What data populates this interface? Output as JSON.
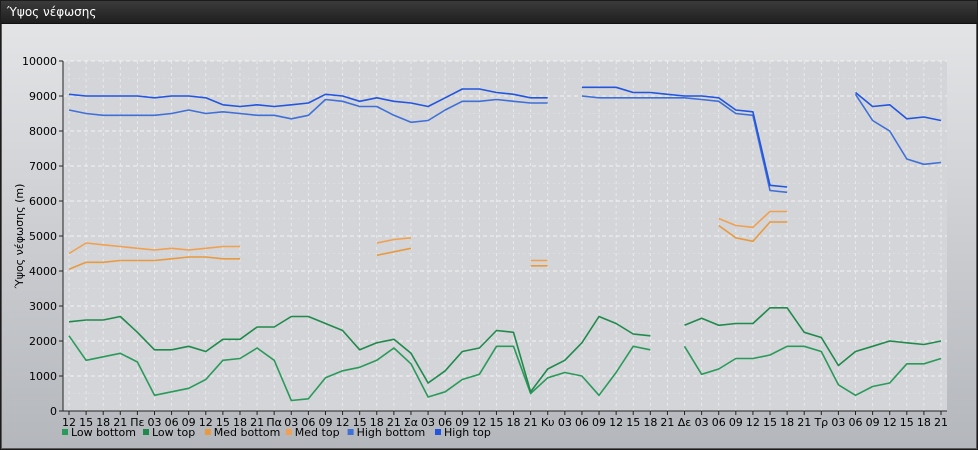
{
  "window": {
    "title": "Ύψος νέφωσης"
  },
  "chart_data": {
    "type": "line",
    "title": "",
    "ylabel": "Ύψος νέφωσης (m)",
    "xlabel": "",
    "ylim": [
      0,
      10000
    ],
    "yticks": [
      0,
      1000,
      2000,
      3000,
      4000,
      5000,
      6000,
      7000,
      8000,
      9000,
      10000
    ],
    "grid": true,
    "legend_position": "bottom-left",
    "categories": [
      "12",
      "15",
      "18",
      "21",
      "Πε",
      "03",
      "06",
      "09",
      "12",
      "15",
      "18",
      "21",
      "Πα",
      "03",
      "06",
      "09",
      "12",
      "15",
      "18",
      "21",
      "Σα",
      "03",
      "06",
      "09",
      "12",
      "15",
      "18",
      "21",
      "Κυ",
      "03",
      "06",
      "09",
      "12",
      "15",
      "18",
      "21",
      "Δε",
      "03",
      "06",
      "09",
      "12",
      "15",
      "18",
      "21",
      "Τρ",
      "03",
      "06",
      "09",
      "12",
      "15",
      "18",
      "21"
    ],
    "series": [
      {
        "name": "Low bottom",
        "color": "#2a9a5a",
        "values": [
          2150,
          1450,
          1550,
          1650,
          1400,
          450,
          550,
          650,
          900,
          1450,
          1500,
          1800,
          1450,
          300,
          350,
          950,
          1150,
          1250,
          1450,
          1800,
          1350,
          400,
          550,
          900,
          1050,
          1850,
          1850,
          500,
          950,
          1100,
          1000,
          450,
          1100,
          1850,
          1750,
          null,
          1850,
          1050,
          1200,
          1500,
          1500,
          1600,
          1850,
          1850,
          1700,
          750,
          450,
          700,
          800,
          1350,
          1350,
          1500
        ]
      },
      {
        "name": "Low top",
        "color": "#1f8a4c",
        "values": [
          2550,
          2600,
          2600,
          2700,
          2250,
          1750,
          1750,
          1850,
          1700,
          2050,
          2050,
          2400,
          2400,
          2700,
          2700,
          2500,
          2300,
          1750,
          1950,
          2050,
          1650,
          800,
          1150,
          1700,
          1800,
          2300,
          2250,
          550,
          1200,
          1450,
          1950,
          2700,
          2500,
          2200,
          2150,
          null,
          2450,
          2650,
          2450,
          2500,
          2500,
          2950,
          2950,
          2250,
          2100,
          1300,
          1700,
          1850,
          2000,
          1950,
          1900,
          2000
        ]
      },
      {
        "name": "Med bottom",
        "color": "#e89a40",
        "values": [
          4050,
          4250,
          4250,
          4300,
          4300,
          4300,
          4350,
          4400,
          4400,
          4350,
          4350,
          null,
          null,
          null,
          null,
          null,
          null,
          null,
          4450,
          4550,
          4650,
          null,
          null,
          null,
          null,
          null,
          null,
          4150,
          4150,
          null,
          null,
          null,
          null,
          null,
          null,
          null,
          null,
          null,
          5300,
          4950,
          4850,
          5400,
          5400,
          null,
          null,
          null,
          null,
          null,
          null,
          null,
          null,
          null
        ]
      },
      {
        "name": "Med top",
        "color": "#f0a050",
        "values": [
          4500,
          4800,
          4750,
          4700,
          4650,
          4600,
          4650,
          4600,
          4650,
          4700,
          4700,
          null,
          null,
          null,
          null,
          null,
          null,
          null,
          4800,
          4900,
          4950,
          null,
          null,
          null,
          null,
          null,
          null,
          4300,
          4300,
          null,
          null,
          null,
          null,
          null,
          null,
          null,
          null,
          null,
          5500,
          5300,
          5250,
          5700,
          5700,
          null,
          null,
          null,
          null,
          null,
          null,
          null,
          null,
          null
        ]
      },
      {
        "name": "High bottom",
        "color": "#3f6fd8",
        "values": [
          8600,
          8500,
          8450,
          8450,
          8450,
          8450,
          8500,
          8600,
          8500,
          8550,
          8500,
          8450,
          8450,
          8350,
          8450,
          8900,
          8850,
          8700,
          8700,
          8450,
          8250,
          8300,
          8600,
          8850,
          8850,
          8900,
          8850,
          8800,
          8800,
          null,
          9000,
          8950,
          8950,
          8950,
          8950,
          8950,
          8950,
          8900,
          8850,
          8500,
          8450,
          6300,
          6250,
          null,
          null,
          null,
          9050,
          8300,
          8000,
          7200,
          7050,
          7100
        ]
      },
      {
        "name": "High top",
        "color": "#2255e0",
        "values": [
          9050,
          9000,
          9000,
          9000,
          9000,
          8950,
          9000,
          9000,
          8950,
          8750,
          8700,
          8750,
          8700,
          8750,
          8800,
          9050,
          9000,
          8850,
          8950,
          8850,
          8800,
          8700,
          8950,
          9200,
          9200,
          9100,
          9050,
          8950,
          8950,
          null,
          9250,
          9250,
          9250,
          9100,
          9100,
          9050,
          9000,
          9000,
          8950,
          8600,
          8550,
          6450,
          6400,
          null,
          null,
          null,
          9100,
          8700,
          8750,
          8350,
          8400,
          8300
        ]
      }
    ]
  }
}
